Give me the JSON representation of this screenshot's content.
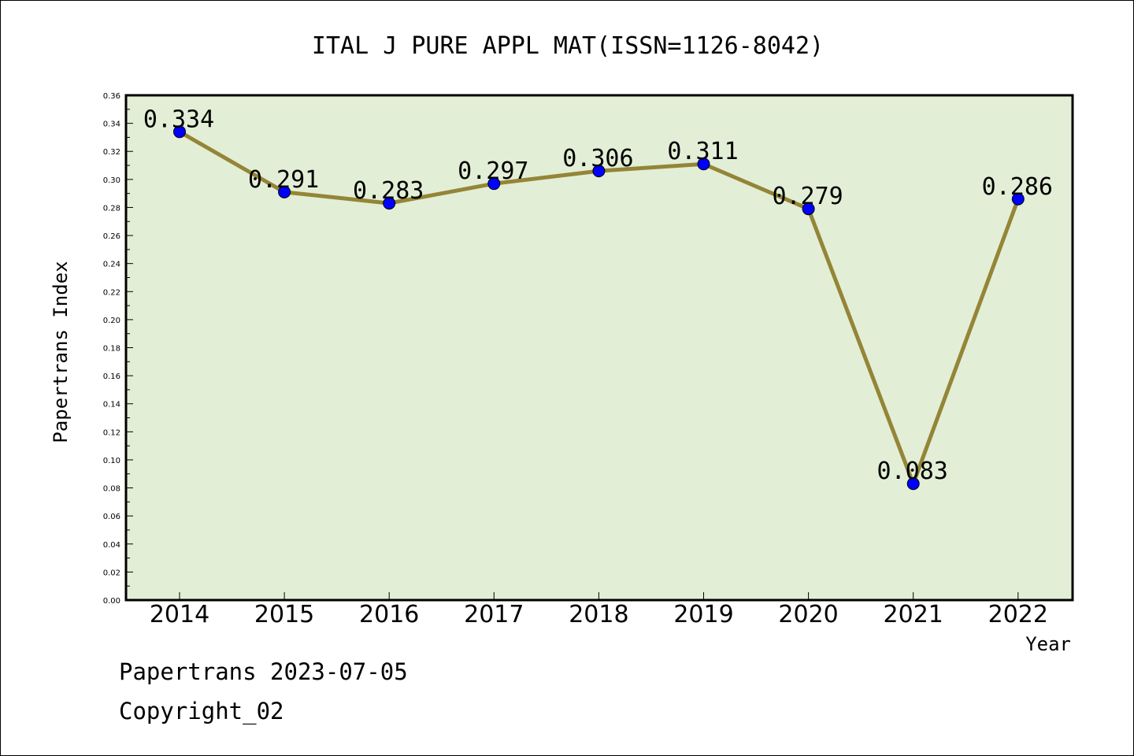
{
  "chart_data": {
    "type": "line",
    "title": "ITAL J PURE APPL MAT(ISSN=1126-8042)",
    "xlabel": "Year",
    "ylabel": "Papertrans Index",
    "categories": [
      "2014",
      "2015",
      "2016",
      "2017",
      "2018",
      "2019",
      "2020",
      "2021",
      "2022"
    ],
    "series": [
      {
        "values": [
          0.334,
          0.291,
          0.283,
          0.297,
          0.306,
          0.311,
          0.279,
          0.083,
          0.286
        ]
      }
    ],
    "data_labels": [
      "0.334",
      "0.291",
      "0.283",
      "0.297",
      "0.306",
      "0.311",
      "0.279",
      "0.083",
      "0.286"
    ],
    "ylim": [
      0,
      0.36
    ],
    "yticks": [
      "0.00",
      "0.02",
      "0.04",
      "0.06",
      "0.08",
      "0.10",
      "0.12",
      "0.14",
      "0.16",
      "0.18",
      "0.20",
      "0.22",
      "0.24",
      "0.26",
      "0.28",
      "0.30",
      "0.32",
      "0.34",
      "0.36"
    ],
    "grid": false,
    "colors": {
      "plot_background": "#e2efd6",
      "line": "#948537",
      "marker": "#0000ff"
    }
  },
  "footer": {
    "stamp": "Papertrans 2023-07-05",
    "copyright": "Copyright_02"
  }
}
